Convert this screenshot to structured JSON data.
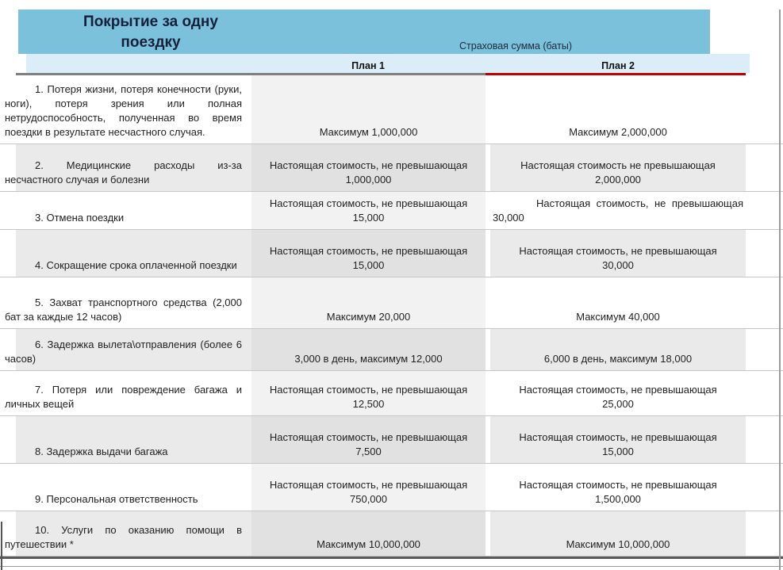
{
  "banner": {
    "title": "Покрытие за одну поездку",
    "sum_header": "Страховая сумма (баты)",
    "bg_color": "#7CC1DC"
  },
  "plan_header": {
    "plan1_label": "План 1",
    "plan2_label": "План 2",
    "bg_color": "#DCEDFA",
    "plan1_underline_color": "#7F7F7F",
    "plan2_underline_color": "#C00000"
  },
  "table": {
    "rows": [
      {
        "item": "1.  Потеря жизни, потеря конечности (руки, ноги), потеря зрения или полная нетрудоспособность, полученная во время поездки в результате несчастного случая.",
        "plan1": "Максимум 1,000,000",
        "plan2": "Максимум 2,000,000"
      },
      {
        "item": "2.  Медицинские расходы из-за несчастного случая и болезни",
        "plan1": "Настоящая стоимость, не превышающая\n1,000,000",
        "plan2": "Настоящая стоимость не превышающая\n2,000,000"
      },
      {
        "item": "3. Отмена поездки",
        "plan1": "Настоящая стоимость, не превышающая\n15,000",
        "plan2": "Настоящая стоимость, не превышающая 30,000"
      },
      {
        "item": "4.  Сокращение срока оплаченной поездки",
        "plan1": "Настоящая стоимость, не превышающая\n15,000",
        "plan2": "Настоящая стоимость, не превышающая\n30,000"
      },
      {
        "item": "5. Захват транспортного средства (2,000 бат за каждые 12 часов)",
        "plan1": "Максимум 20,000",
        "plan2": "Максимум 40,000"
      },
      {
        "item": "6.  Задержка вылета\\отправления (более 6 часов)",
        "plan1": "3,000 в день, максимум 12,000",
        "plan2": "6,000  в день, максимум 18,000"
      },
      {
        "item": "7.  Потеря или повреждение багажа и личных вещей",
        "plan1": "Настоящая стоимость, не превышающая\n12,500",
        "plan2": "Настоящая стоимость, не превышающая\n25,000"
      },
      {
        "item": "8. Задержка выдачи багажа",
        "plan1": "Настоящая стоимость, не превышающая\n7,500",
        "plan2": "Настоящая стоимость, не превышающая\n15,000"
      },
      {
        "item": "9.  Персональная ответственность",
        "plan1": "Настоящая стоимость, не превышающая\n750,000",
        "plan2": "Настоящая стоимость, не превышающая\n1,500,000"
      },
      {
        "item": "10.  Услуги по оказанию помощи в путешествии *",
        "plan1": "Максимум 10,000,000",
        "plan2": "Максимум 10,000,000"
      }
    ]
  }
}
